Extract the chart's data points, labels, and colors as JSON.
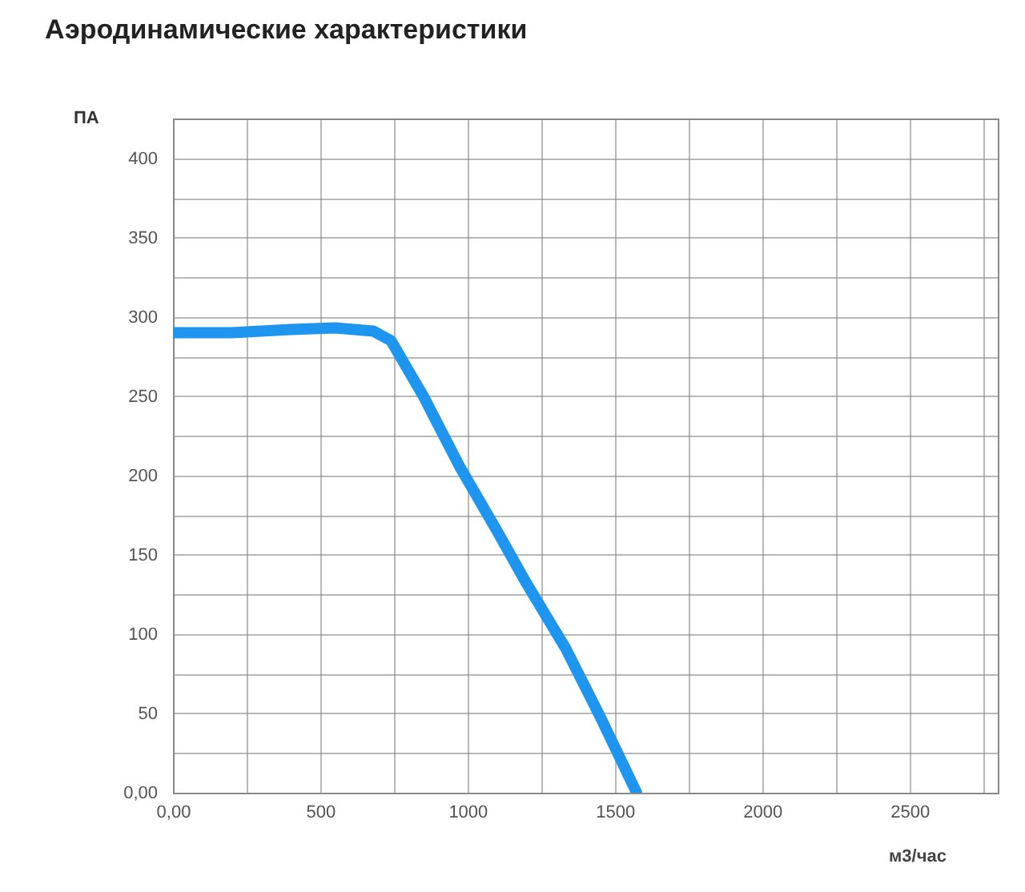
{
  "chart_data": {
    "type": "line",
    "title": "Аэродинамические характеристики",
    "xlabel": "м3/час",
    "ylabel": "ПА",
    "x": [
      0,
      200,
      400,
      550,
      680,
      740,
      850,
      975,
      1100,
      1200,
      1333,
      1450,
      1574
    ],
    "series": [
      {
        "color": "#1e96f0",
        "values": [
          290,
          290,
          292,
          293,
          291,
          285,
          250,
          205,
          165,
          132,
          91,
          48,
          0
        ]
      }
    ],
    "xlim": [
      0,
      2800
    ],
    "xticks": [
      {
        "value": 0,
        "label": "0,00"
      },
      {
        "value": 250,
        "label": null
      },
      500,
      {
        "value": 750,
        "label": null
      },
      1000,
      {
        "value": 1250,
        "label": null
      },
      1500,
      {
        "value": 1750,
        "label": null
      },
      2000,
      {
        "value": 2250,
        "label": null
      },
      2500,
      {
        "value": 2750,
        "label": null
      }
    ],
    "ylim": [
      0,
      425
    ],
    "yticks": [
      {
        "value": 0,
        "label": "0,00"
      },
      {
        "value": 25,
        "label": null
      },
      50,
      {
        "value": 75,
        "label": null
      },
      100,
      {
        "value": 125,
        "label": null
      },
      150,
      {
        "value": 175,
        "label": null
      },
      200,
      {
        "value": 225,
        "label": null
      },
      250,
      {
        "value": 275,
        "label": null
      },
      300,
      {
        "value": 325,
        "label": null
      },
      350,
      {
        "value": 375,
        "label": null
      },
      400,
      {
        "value": 425,
        "label": null
      }
    ],
    "grid": true,
    "line_style": "solid",
    "marker": "none"
  }
}
